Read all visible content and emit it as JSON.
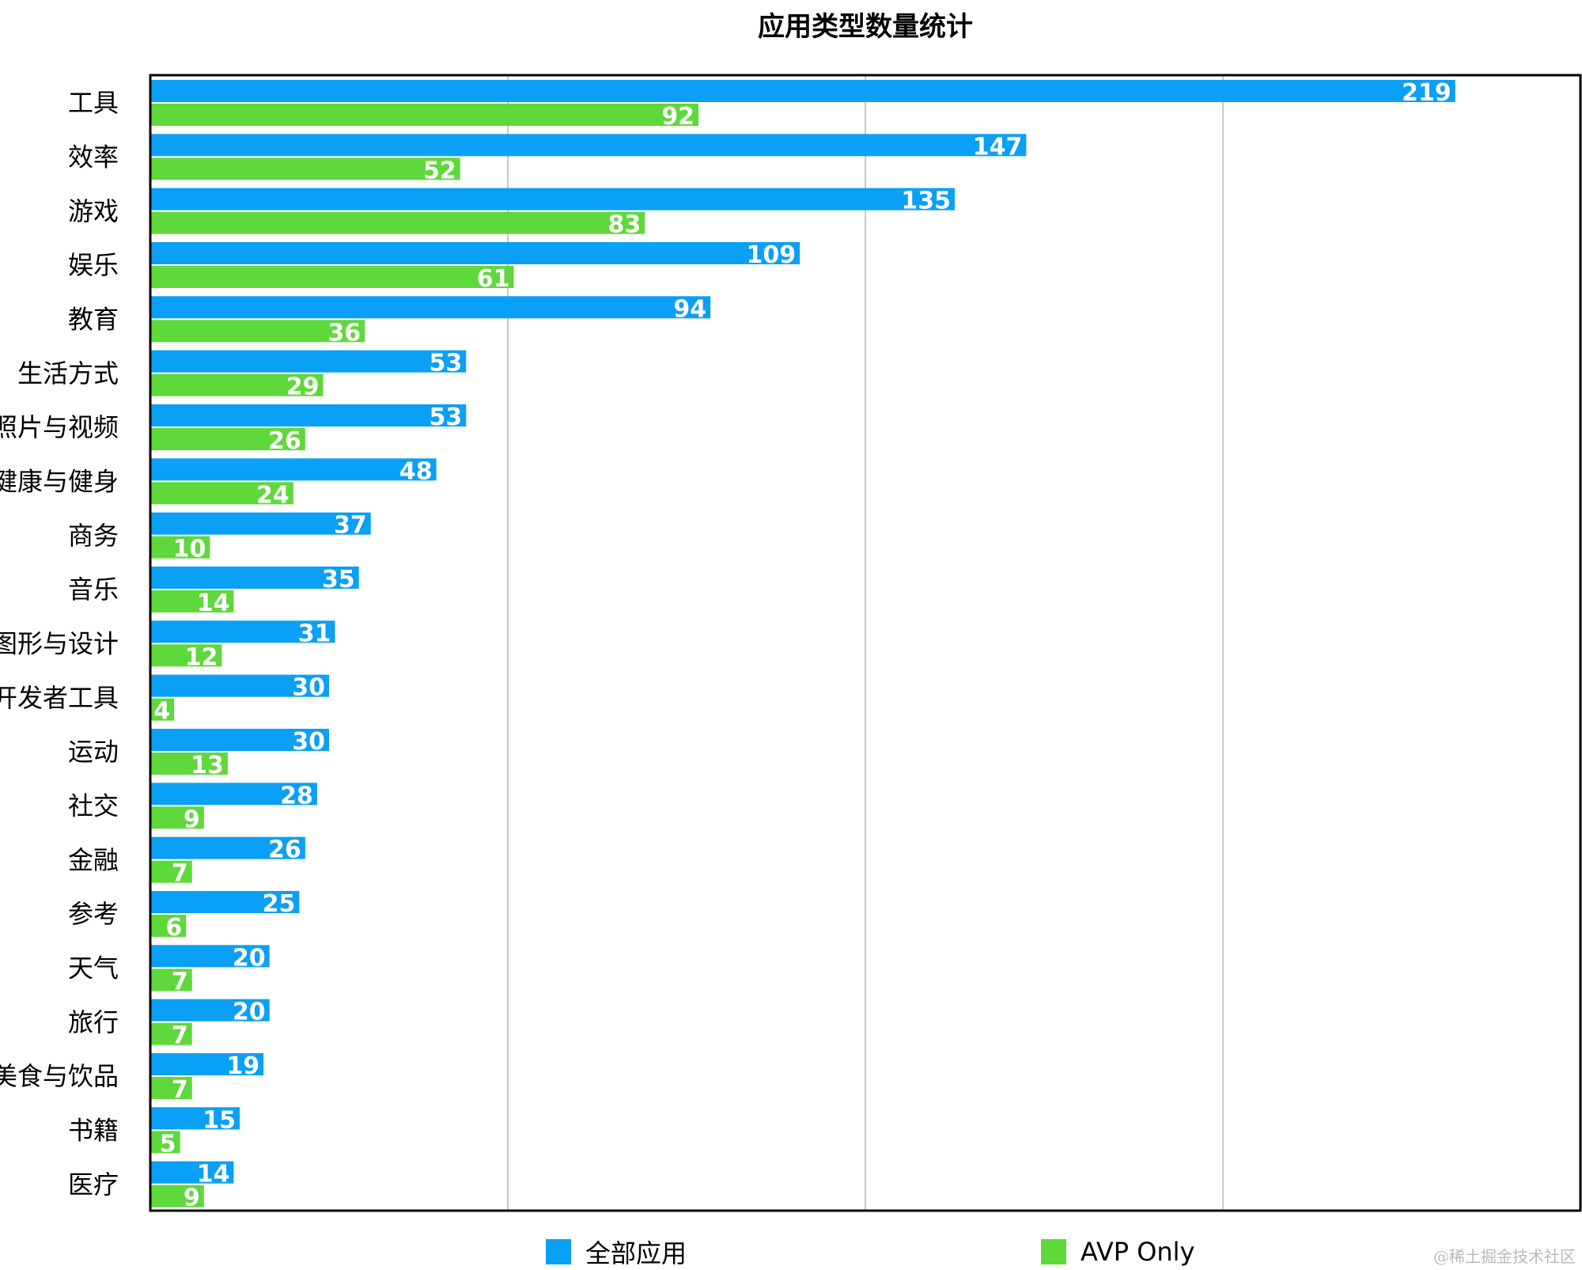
{
  "chart_data": {
    "type": "bar",
    "orientation": "horizontal",
    "title": "应用类型数量统计",
    "categories": [
      "工具",
      "效率",
      "游戏",
      "娱乐",
      "教育",
      "生活方式",
      "照片与视频",
      "健康与健身",
      "商务",
      "音乐",
      "图形与设计",
      "开发者工具",
      "运动",
      "社交",
      "金融",
      "参考",
      "天气",
      "旅行",
      "美食与饮品",
      "书籍",
      "医疗"
    ],
    "series": [
      {
        "name": "全部应用",
        "color": "#0aa0f5",
        "values": [
          219,
          147,
          135,
          109,
          94,
          53,
          53,
          48,
          37,
          35,
          31,
          30,
          30,
          28,
          26,
          25,
          20,
          20,
          19,
          15,
          14
        ]
      },
      {
        "name": "AVP Only",
        "color": "#5ed83a",
        "values": [
          92,
          52,
          83,
          61,
          36,
          29,
          26,
          24,
          10,
          14,
          12,
          4,
          13,
          9,
          7,
          6,
          7,
          7,
          7,
          5,
          9
        ]
      }
    ],
    "xlim": [
      0,
      240
    ],
    "grid": true,
    "legend_position": "bottom"
  },
  "watermark": "@稀土掘金技术社区"
}
